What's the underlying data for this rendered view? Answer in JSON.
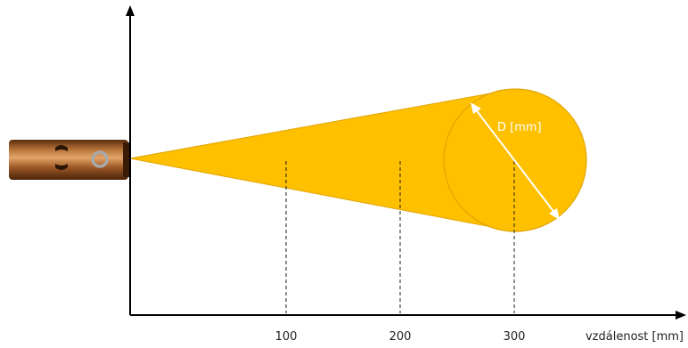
{
  "diagram": {
    "x_axis_label": "vzdálenost [mm]",
    "diameter_label": "D [mm]",
    "ticks": [
      "100",
      "200",
      "300"
    ],
    "colors": {
      "beam_fill": "#FFC000",
      "beam_stroke": "#E0A400",
      "sensor_body": "#9A5524",
      "axis": "#000000",
      "diameter_arrow": "#ffffff"
    }
  }
}
